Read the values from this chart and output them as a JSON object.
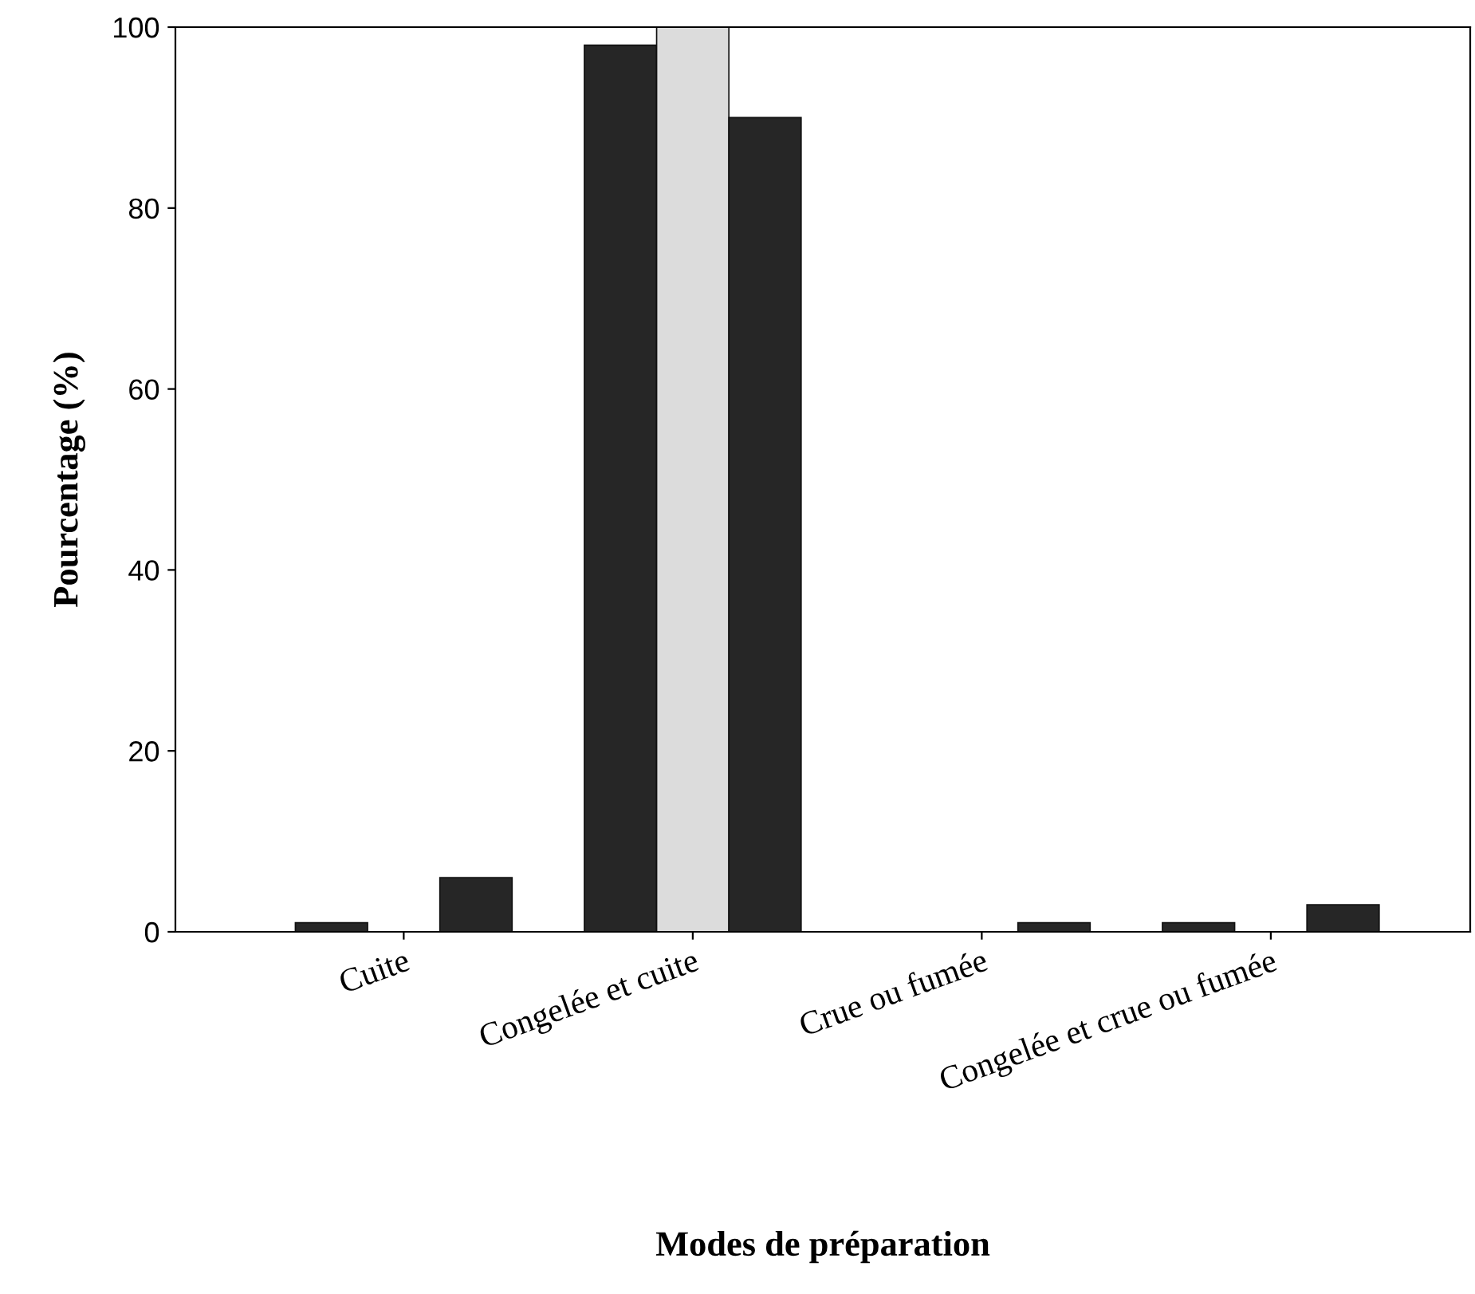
{
  "chart_data": {
    "type": "bar",
    "xlabel": "Modes de préparation",
    "ylabel": "Pourcentage (%)",
    "categories": [
      "Cuite",
      "Congelée et cuite",
      "Crue ou fumée",
      "Congelée et crue ou fumée"
    ],
    "series": [
      {
        "color": "#262626",
        "values": [
          1,
          98,
          0,
          1
        ]
      },
      {
        "color": "#dcdcdc",
        "values": [
          0,
          100,
          0,
          0
        ]
      },
      {
        "color": "#262626",
        "values": [
          6,
          90,
          1,
          3
        ]
      }
    ],
    "ylim": [
      0,
      100
    ],
    "yticks": [
      0,
      20,
      40,
      60,
      80,
      100
    ],
    "grid": false,
    "legend": false
  }
}
